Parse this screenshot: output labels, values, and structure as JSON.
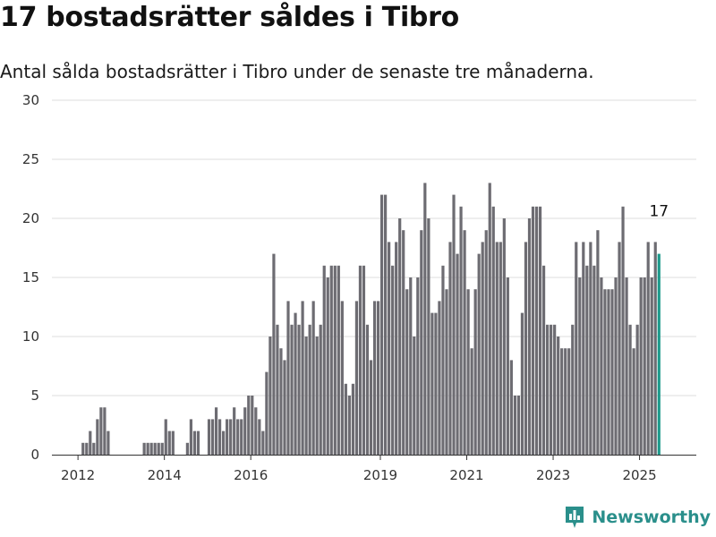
{
  "title": "17 bostadsrätter såldes i Tibro",
  "subtitle": "Antal sålda bostadsrätter i Tibro under de senaste tre månaderna.",
  "brand": "Newsworthy",
  "colors": {
    "bar": "#6d6c72",
    "highlight": "#1d9a8c",
    "grid": "#dddddd",
    "brand": "#2a8f8b"
  },
  "chart_data": {
    "type": "bar",
    "ylim": [
      0,
      30
    ],
    "yticks": [
      "0",
      "5",
      "10",
      "15",
      "20",
      "25",
      "30"
    ],
    "xticks": [
      "2012",
      "2014",
      "2016",
      "2019",
      "2021",
      "2023",
      "2025"
    ],
    "grid": true,
    "start": "2011-07",
    "values": [
      0,
      0,
      0,
      0,
      0,
      0,
      0,
      1,
      1,
      2,
      1,
      3,
      4,
      4,
      2,
      0,
      0,
      0,
      0,
      0,
      0,
      0,
      0,
      0,
      1,
      1,
      1,
      1,
      1,
      1,
      3,
      2,
      2,
      0,
      0,
      0,
      1,
      3,
      2,
      2,
      0,
      0,
      3,
      3,
      4,
      3,
      2,
      3,
      3,
      4,
      3,
      3,
      4,
      5,
      5,
      4,
      3,
      2,
      7,
      10,
      17,
      11,
      9,
      8,
      13,
      11,
      12,
      11,
      13,
      10,
      11,
      13,
      10,
      11,
      16,
      15,
      16,
      16,
      16,
      13,
      6,
      5,
      6,
      13,
      16,
      16,
      11,
      8,
      13,
      13,
      22,
      22,
      18,
      16,
      18,
      20,
      19,
      14,
      15,
      10,
      15,
      19,
      23,
      20,
      12,
      12,
      13,
      16,
      14,
      18,
      22,
      17,
      21,
      19,
      14,
      9,
      14,
      17,
      18,
      19,
      23,
      21,
      18,
      18,
      20,
      15,
      8,
      5,
      5,
      12,
      18,
      20,
      21,
      21,
      21,
      16,
      11,
      11,
      11,
      10,
      9,
      9,
      9,
      11,
      18,
      15,
      18,
      16,
      18,
      16,
      19,
      15,
      14,
      14,
      14,
      15,
      18,
      21,
      15,
      11,
      9,
      11,
      15,
      15,
      18,
      15,
      18,
      17
    ],
    "highlight_last": 1,
    "annotation": "17"
  }
}
